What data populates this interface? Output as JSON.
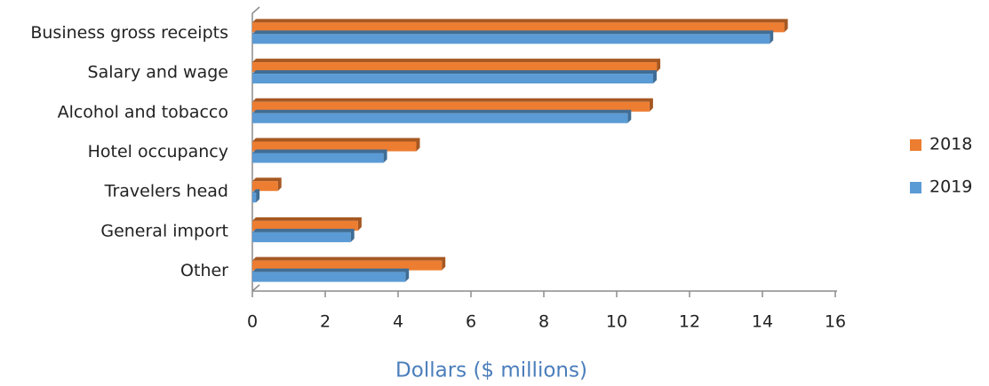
{
  "chart_data": {
    "type": "bar",
    "orientation": "horizontal",
    "x_label": "Dollars ($ millions)",
    "categories": [
      "Business gross receipts",
      "Salary and wage",
      "Alcohol and tobacco",
      "Hotel occupancy",
      "Travelers head",
      "General import",
      "Other"
    ],
    "series": [
      {
        "name": "2018",
        "color": "#ed7d31",
        "values": [
          14.6,
          11.1,
          10.9,
          4.5,
          0.7,
          2.9,
          5.2
        ]
      },
      {
        "name": "2019",
        "color": "#5b9bd5",
        "values": [
          14.2,
          11.0,
          10.3,
          3.6,
          0.1,
          2.7,
          4.2
        ]
      }
    ],
    "xlim": [
      0,
      16
    ],
    "xticks": [
      0,
      2,
      4,
      6,
      8,
      10,
      12,
      14,
      16
    ],
    "legend": "right"
  }
}
